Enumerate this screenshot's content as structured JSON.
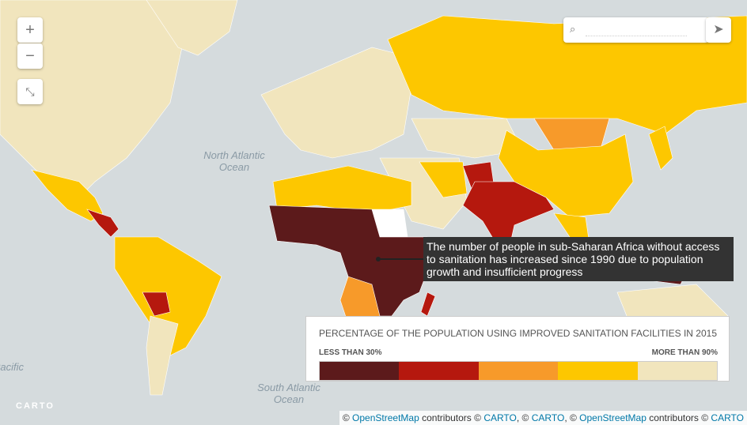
{
  "map": {
    "ocean_labels": [
      {
        "line1": "North Atlantic",
        "line2": "Ocean"
      },
      {
        "line1": "South Atlantic",
        "line2": "Ocean"
      },
      {
        "line1": "Pacific"
      }
    ],
    "logo": "CARTO"
  },
  "controls": {
    "zoom_in": "+",
    "zoom_out": "−"
  },
  "annotation": {
    "text": "The number of people in sub-Saharan Africa without access to sanitation has increased since 1990 due to population growth and insufficient progress"
  },
  "legend": {
    "title": "PERCENTAGE OF THE POPULATION USING IMPROVED SANITATION FACILITIES IN 2015",
    "min_label": "LESS THAN 30%",
    "max_label": "MORE THAN 90%",
    "colors": [
      "#5c1a1b",
      "#b5180e",
      "#f79a2a",
      "#fdc700",
      "#f1e5bd"
    ]
  },
  "attribution": [
    {
      "text": "© "
    },
    {
      "text": "OpenStreetMap",
      "link": true
    },
    {
      "text": " contributors © "
    },
    {
      "text": "CARTO",
      "link": true
    },
    {
      "text": ", © "
    },
    {
      "text": "CARTO",
      "link": true
    },
    {
      "text": ", © "
    },
    {
      "text": "OpenStreetMap",
      "link": true
    },
    {
      "text": " contributors © "
    },
    {
      "text": "CARTO",
      "link": true
    }
  ]
}
